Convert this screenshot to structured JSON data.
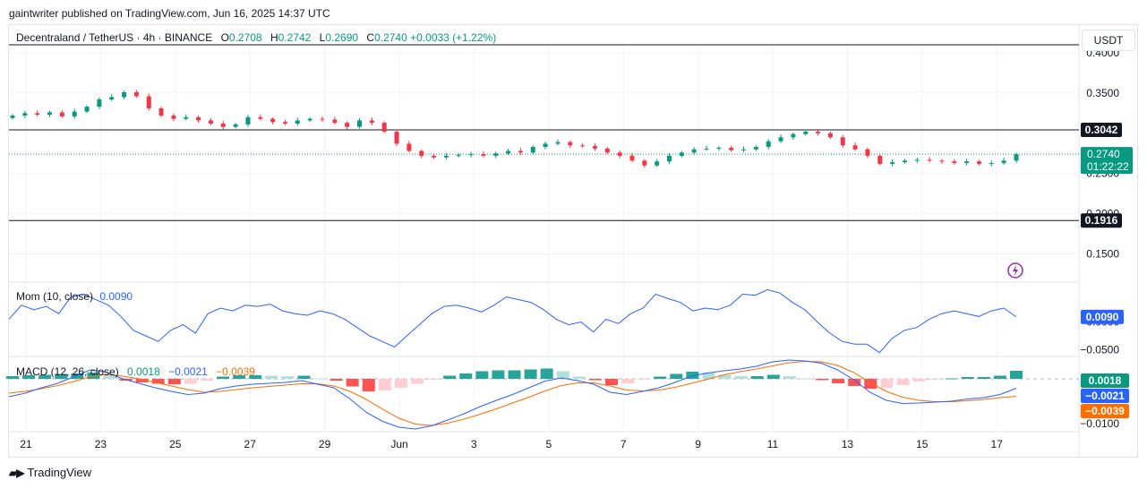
{
  "caption": "gaintwriter published on TradingView.com, Jun 16, 2025 14:37 UTC",
  "footer_logo": "TradingView",
  "currency_button": "USDT",
  "legend": {
    "symbol": "Decentraland / TetherUS · 4h · BINANCE",
    "o_label": "O",
    "o": "0.2708",
    "h_label": "H",
    "h": "0.2742",
    "l_label": "L",
    "l": "0.2690",
    "c_label": "C",
    "c": "0.2740",
    "change": "+0.0033 (+1.22%)"
  },
  "mom_legend": {
    "name": "Mom (10, close)",
    "value": "0.0090"
  },
  "macd_legend": {
    "name": "MACD (12, 26, close)",
    "hist": "0.0018",
    "macd": "−0.0021",
    "signal": "−0.0039"
  },
  "colors": {
    "up": "#089981",
    "down": "#f23645",
    "macd": "#2962ff",
    "signal": "#ff6d00",
    "mom": "#2962ff",
    "hist_up": "#26a69a",
    "hist_up_light": "#b2dfdb",
    "hist_down": "#ff5252",
    "hist_down_light": "#ffcdd2"
  },
  "chart_data": [
    {
      "type": "candlestick",
      "pane": "price",
      "symbol": "Decentraland / TetherUS",
      "interval": "4h",
      "exchange": "BINANCE",
      "price_axis_ticks": [
        "0.4000",
        "0.3500",
        "0.2500",
        "0.2000",
        "0.1500"
      ],
      "x_tick_labels": [
        "21",
        "23",
        "25",
        "27",
        "29",
        "Jun",
        "3",
        "5",
        "7",
        "9",
        "11",
        "13",
        "15",
        "17"
      ],
      "ylim": [
        0.115,
        0.41
      ],
      "horizontal_levels": [
        0.3042,
        0.1916
      ],
      "level_labels": [
        "0.3042",
        "0.1916"
      ],
      "last_price": 0.274,
      "last_price_label": "0.2740",
      "countdown": "01:22:22",
      "close_path": [
        0.322,
        0.325,
        0.323,
        0.326,
        0.321,
        0.327,
        0.333,
        0.342,
        0.345,
        0.351,
        0.346,
        0.331,
        0.322,
        0.318,
        0.32,
        0.316,
        0.312,
        0.308,
        0.311,
        0.32,
        0.318,
        0.314,
        0.312,
        0.316,
        0.318,
        0.317,
        0.313,
        0.308,
        0.316,
        0.313,
        0.302,
        0.287,
        0.278,
        0.272,
        0.27,
        0.272,
        0.273,
        0.274,
        0.272,
        0.275,
        0.278,
        0.276,
        0.283,
        0.287,
        0.289,
        0.285,
        0.284,
        0.281,
        0.276,
        0.272,
        0.266,
        0.26,
        0.265,
        0.272,
        0.276,
        0.28,
        0.281,
        0.282,
        0.279,
        0.28,
        0.283,
        0.29,
        0.295,
        0.299,
        0.302,
        0.3,
        0.295,
        0.285,
        0.28,
        0.272,
        0.262,
        0.264,
        0.266,
        0.267,
        0.266,
        0.265,
        0.263,
        0.265,
        0.262,
        0.263,
        0.266,
        0.274
      ]
    },
    {
      "type": "line",
      "pane": "momentum",
      "name": "Mom (10, close)",
      "value_label": "0.0090",
      "axis_ticks": [
        "0.0000",
        "−0.0500"
      ],
      "axis_values": [
        0.0,
        -0.05
      ],
      "ylim": [
        -0.062,
        0.07
      ],
      "values": [
        0.005,
        0.03,
        0.022,
        0.028,
        0.015,
        0.045,
        0.05,
        0.04,
        0.03,
        0.01,
        -0.015,
        -0.025,
        -0.035,
        -0.015,
        -0.005,
        -0.02,
        0.015,
        0.025,
        0.02,
        0.03,
        0.028,
        0.032,
        0.02,
        0.015,
        0.012,
        0.02,
        0.015,
        0.005,
        -0.01,
        -0.025,
        -0.035,
        -0.045,
        -0.025,
        -0.005,
        0.015,
        0.028,
        0.03,
        0.025,
        0.018,
        0.03,
        0.045,
        0.04,
        0.035,
        0.022,
        0.005,
        -0.005,
        0.0,
        -0.018,
        0.005,
        -0.003,
        0.015,
        0.025,
        0.05,
        0.042,
        0.035,
        0.02,
        0.025,
        0.022,
        0.03,
        0.05,
        0.048,
        0.058,
        0.052,
        0.035,
        0.022,
        0.0,
        -0.02,
        -0.035,
        -0.04,
        -0.04,
        -0.055,
        -0.03,
        -0.015,
        -0.01,
        0.005,
        0.015,
        0.02,
        0.015,
        0.01,
        0.02,
        0.025,
        0.009
      ]
    },
    {
      "type": "line+histogram",
      "pane": "macd",
      "name": "MACD (12, 26, close)",
      "axis_ticks": [
        "−0.0100"
      ],
      "axis_values": [
        -0.01
      ],
      "ylim": [
        -0.0118,
        0.0048
      ],
      "macd": [
        -0.004,
        -0.0032,
        -0.002,
        -0.001,
        0.0005,
        0.002,
        0.0015,
        0.0,
        -0.001,
        -0.002,
        -0.0028,
        -0.0035,
        -0.0032,
        -0.0022,
        -0.0016,
        -0.0012,
        -0.001,
        -0.0008,
        -0.0004,
        -0.0012,
        -0.002,
        -0.0045,
        -0.0075,
        -0.0095,
        -0.0108,
        -0.0112,
        -0.0105,
        -0.0092,
        -0.0078,
        -0.0062,
        -0.0048,
        -0.0035,
        -0.002,
        -0.0005,
        0.0002,
        -0.0004,
        -0.0012,
        -0.003,
        -0.0035,
        -0.0028,
        -0.002,
        -0.0008,
        0.0006,
        0.0013,
        0.0018,
        0.0022,
        0.0028,
        0.0038,
        0.0042,
        0.004,
        0.0035,
        0.002,
        -0.0002,
        -0.003,
        -0.0048,
        -0.0055,
        -0.0054,
        -0.0052,
        -0.005,
        -0.0045,
        -0.0042,
        -0.0035,
        -0.0021
      ],
      "signal": [
        -0.0032,
        -0.0028,
        -0.0022,
        -0.0015,
        -0.0006,
        0.0005,
        0.001,
        0.0006,
        0.0,
        -0.0008,
        -0.0016,
        -0.0024,
        -0.003,
        -0.0028,
        -0.0024,
        -0.002,
        -0.0017,
        -0.0014,
        -0.0011,
        -0.0011,
        -0.0016,
        -0.0028,
        -0.0046,
        -0.0068,
        -0.0088,
        -0.0101,
        -0.0104,
        -0.0099,
        -0.009,
        -0.0079,
        -0.0067,
        -0.0054,
        -0.0041,
        -0.0027,
        -0.0015,
        -0.0009,
        -0.0009,
        -0.0016,
        -0.0025,
        -0.0027,
        -0.0025,
        -0.0019,
        -0.001,
        -0.0001,
        0.0009,
        0.0016,
        0.0022,
        0.0029,
        0.0036,
        0.0039,
        0.0038,
        0.003,
        0.0014,
        -0.0008,
        -0.0028,
        -0.0041,
        -0.0048,
        -0.0051,
        -0.0051,
        -0.0049,
        -0.0046,
        -0.0042,
        -0.0039
      ],
      "histogram": [
        0.0006,
        0.0008,
        0.0009,
        0.0011,
        0.0012,
        0.0014,
        0.0009,
        -0.0004,
        -0.0008,
        -0.0011,
        -0.0012,
        -0.0011,
        -0.0004,
        0.0005,
        0.0008,
        0.0008,
        0.0007,
        0.0006,
        0.0007,
        0.0001,
        -0.0004,
        -0.0017,
        -0.0028,
        -0.0026,
        -0.002,
        -0.0011,
        -0.0001,
        0.0007,
        0.0012,
        0.0017,
        0.0019,
        0.0019,
        0.0021,
        0.0023,
        0.0017,
        0.0005,
        -0.0003,
        -0.0014,
        -0.001,
        -0.0001,
        0.0005,
        0.0011,
        0.0016,
        0.0014,
        0.0009,
        0.0006,
        0.0006,
        0.0009,
        0.0006,
        0.0001,
        -0.0003,
        -0.001,
        -0.0016,
        -0.0022,
        -0.002,
        -0.0014,
        -0.0006,
        -0.0001,
        0.0001,
        0.0004,
        0.0004,
        0.0007,
        0.0018
      ],
      "labels": {
        "histogram": "0.0018",
        "macd": "−0.0021",
        "signal": "−0.0039"
      }
    }
  ]
}
